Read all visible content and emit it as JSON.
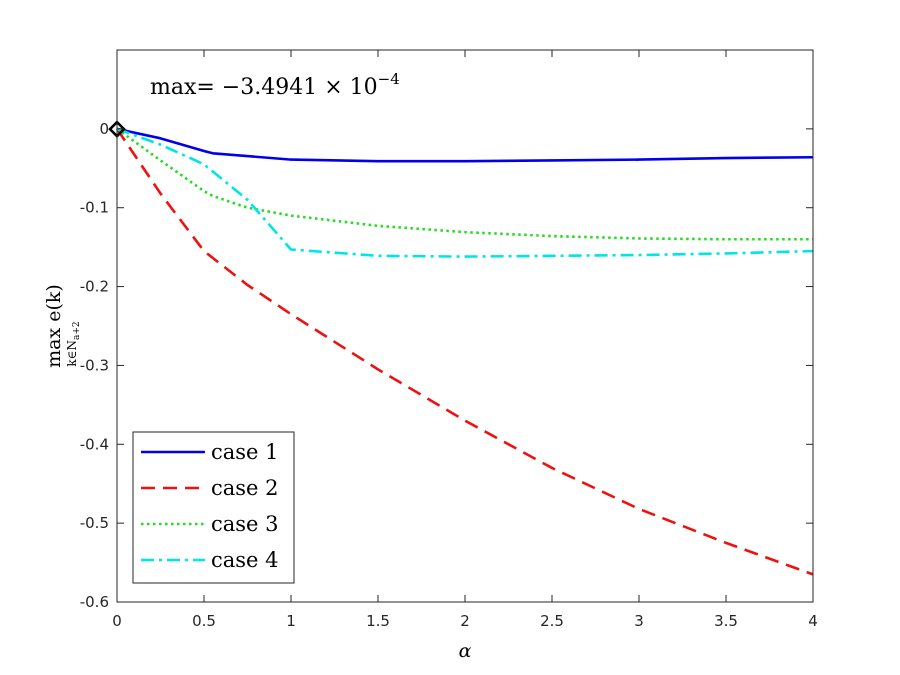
{
  "chart_data": {
    "type": "line",
    "xlabel": "α",
    "ylabel_main": "max e(k)",
    "ylabel_sub": "k∈N",
    "ylabel_subscript": "a+2",
    "annotation": {
      "prefix": "max= −3.4941 × 10",
      "exponent": "−4"
    },
    "xlim": [
      0,
      4
    ],
    "ylim": [
      -0.6,
      0.1
    ],
    "xticks": [
      0,
      0.5,
      1,
      1.5,
      2,
      2.5,
      3,
      3.5,
      4
    ],
    "xtick_labels": [
      "0",
      "0.5",
      "1",
      "1.5",
      "2",
      "2.5",
      "3",
      "3.5",
      "4"
    ],
    "yticks": [
      0,
      -0.1,
      -0.2,
      -0.3,
      -0.4,
      -0.5,
      -0.6
    ],
    "ytick_labels": [
      "0",
      "-0.1",
      "-0.2",
      "-0.3",
      "-0.4",
      "-0.5",
      "-0.6"
    ],
    "grid": false,
    "legend_position": "bottom-left",
    "marker": {
      "shape": "diamond",
      "x": 0,
      "y": -0.00035
    },
    "series": [
      {
        "name": "case 1",
        "color": "#0000ee",
        "style": "solid",
        "x": [
          0,
          0.25,
          0.5,
          0.55,
          1,
          1.5,
          2,
          2.5,
          3,
          3.5,
          4
        ],
        "y": [
          0,
          -0.012,
          -0.028,
          -0.031,
          -0.039,
          -0.041,
          -0.041,
          -0.04,
          -0.039,
          -0.037,
          -0.036
        ]
      },
      {
        "name": "case 2",
        "color": "#ee1111",
        "style": "dashed",
        "x": [
          0,
          0.25,
          0.5,
          0.75,
          1,
          1.5,
          2,
          2.5,
          3,
          3.5,
          4
        ],
        "y": [
          0,
          -0.082,
          -0.155,
          -0.198,
          -0.235,
          -0.305,
          -0.37,
          -0.43,
          -0.482,
          -0.525,
          -0.565
        ]
      },
      {
        "name": "case 3",
        "color": "#22dd22",
        "style": "dotted",
        "x": [
          0,
          0.25,
          0.5,
          0.55,
          0.75,
          1,
          1.5,
          2,
          2.5,
          3,
          3.5,
          4
        ],
        "y": [
          0,
          -0.04,
          -0.079,
          -0.085,
          -0.1,
          -0.11,
          -0.123,
          -0.131,
          -0.136,
          -0.139,
          -0.14,
          -0.14
        ]
      },
      {
        "name": "case 4",
        "color": "#00e5e5",
        "style": "dashdot",
        "x": [
          0,
          0.25,
          0.5,
          0.75,
          1,
          1.5,
          2,
          2.5,
          3,
          3.5,
          4
        ],
        "y": [
          0,
          -0.02,
          -0.045,
          -0.09,
          -0.153,
          -0.161,
          -0.162,
          -0.161,
          -0.16,
          -0.158,
          -0.155
        ]
      }
    ]
  }
}
